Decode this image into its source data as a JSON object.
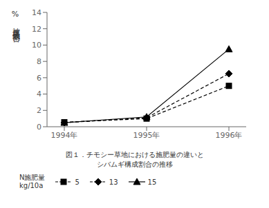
{
  "chart_data": {
    "type": "line",
    "title": "図１．チモシー草地における施肥量の違いと",
    "subtitle": "シバムギ構成割合の推移",
    "y_label": "被度構成割合",
    "annotations": [
      "%"
    ],
    "legend_title": [
      "N施肥量",
      "kg/10a"
    ],
    "categories": [
      "1994年",
      "1995年",
      "1996年"
    ],
    "series": [
      {
        "name": "5",
        "color": "#000000",
        "marker": "square",
        "line_style": "dashed",
        "values": [
          0.55,
          1.0,
          5.0
        ]
      },
      {
        "name": "13",
        "color": "#000000",
        "marker": "diamond",
        "line_style": "dashed",
        "values": [
          0.5,
          1.1,
          6.5
        ]
      },
      {
        "name": "15",
        "color": "#000000",
        "marker": "triangle",
        "line_style": "solid",
        "values": [
          0.5,
          1.2,
          9.5
        ]
      }
    ],
    "ylim": [
      0,
      14
    ],
    "yticks": [
      0,
      2,
      4,
      6,
      8,
      10,
      12,
      14
    ],
    "grid": false,
    "legend": "bottom"
  }
}
